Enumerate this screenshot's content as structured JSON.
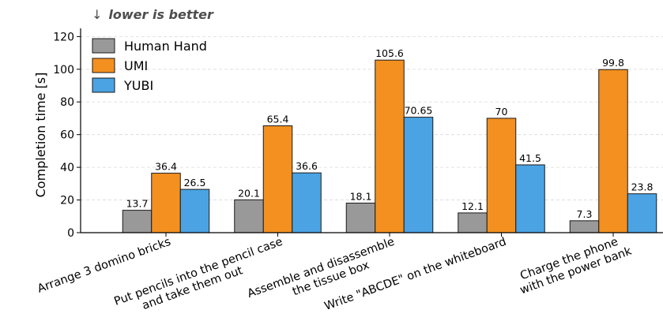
{
  "annotation": {
    "arrow": "↓",
    "text": "lower is better"
  },
  "chart_data": {
    "type": "bar",
    "title": "",
    "xlabel": "",
    "ylabel": "Completion time [s]",
    "ylim": [
      0,
      125
    ],
    "yticks": [
      0,
      20,
      40,
      60,
      80,
      100,
      120
    ],
    "grid": "horizontal dashed",
    "legend_position": "top-left",
    "categories": [
      [
        "Arrange 3 domino bricks"
      ],
      [
        "Put pencils into the pencil case",
        "and take them out"
      ],
      [
        "Assemble and disassemble",
        "the tissue box"
      ],
      [
        "Write \"ABCDE\" on the whiteboard"
      ],
      [
        "Charge the phone",
        "with the power bank"
      ]
    ],
    "series": [
      {
        "name": "Human Hand",
        "color": "#999999",
        "values": [
          13.7,
          20.1,
          18.1,
          12.1,
          7.3
        ],
        "labels": [
          "13.7",
          "20.1",
          "18.1",
          "12.1",
          "7.3"
        ]
      },
      {
        "name": "UMI",
        "color": "#f39020",
        "values": [
          36.4,
          65.4,
          105.6,
          70,
          99.8
        ],
        "labels": [
          "36.4",
          "65.4",
          "105.6",
          "70",
          "99.8"
        ]
      },
      {
        "name": "YUBI",
        "color": "#4ba3e3",
        "values": [
          26.5,
          36.6,
          70.65,
          41.5,
          23.8
        ],
        "labels": [
          "26.5",
          "36.6",
          "70.65",
          "41.5",
          "23.8"
        ]
      }
    ]
  }
}
